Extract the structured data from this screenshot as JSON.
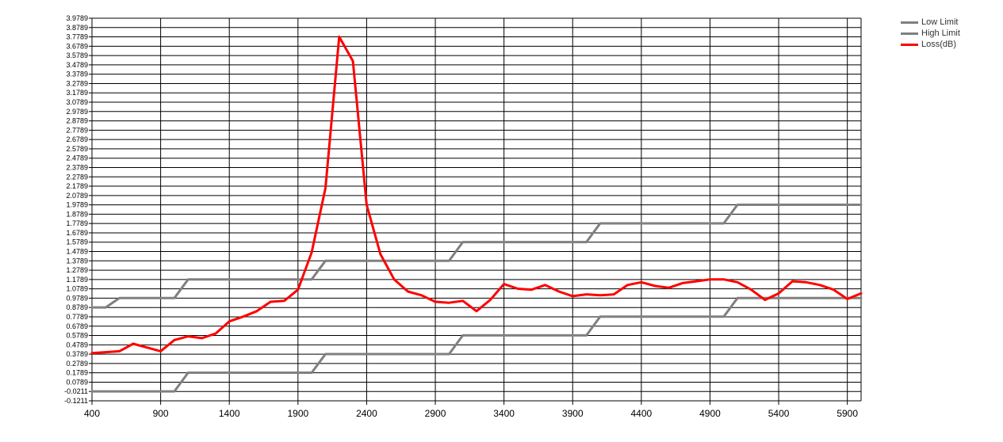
{
  "chart_data": {
    "type": "line",
    "title": "",
    "xlabel": "",
    "ylabel": "",
    "xlim": [
      400,
      6000
    ],
    "ylim": [
      -0.1211,
      3.9789
    ],
    "grid": true,
    "legend_position": "top-right",
    "x_ticks": [
      "400",
      "900",
      "1400",
      "1900",
      "2400",
      "2900",
      "3400",
      "3900",
      "4400",
      "4900",
      "5400",
      "5900"
    ],
    "y_ticks": [
      "3.9789",
      "3.8789",
      "3.7789",
      "3.6789",
      "3.5789",
      "3.4789",
      "3.3789",
      "3.2789",
      "3.1789",
      "3.0789",
      "2.9789",
      "2.8789",
      "2.7789",
      "2.6789",
      "2.5789",
      "2.4789",
      "2.3789",
      "2.2789",
      "2.1789",
      "2.0789",
      "1.9789",
      "1.8789",
      "1.7789",
      "1.6789",
      "1.5789",
      "1.4789",
      "1.3789",
      "1.2789",
      "1.1789",
      "1.0789",
      "0.9789",
      "0.8789",
      "0.7789",
      "0.6789",
      "0.5789",
      "0.4789",
      "0.3789",
      "0.2789",
      "0.1789",
      "0.0789",
      "-0.0211",
      "-0.1211"
    ],
    "series": [
      {
        "name": "Low Limit",
        "color": "#808080",
        "x": [
          400,
          500,
          1000,
          1100,
          2000,
          2100,
          3000,
          3100,
          4000,
          4100,
          5000,
          5100,
          6000
        ],
        "y": [
          -0.02,
          -0.02,
          -0.02,
          0.18,
          0.18,
          0.38,
          0.38,
          0.58,
          0.58,
          0.78,
          0.78,
          0.98,
          0.98
        ]
      },
      {
        "name": "High Limit",
        "color": "#808080",
        "x": [
          400,
          500,
          600,
          1000,
          1100,
          1900,
          2000,
          2100,
          3000,
          3100,
          4000,
          4100,
          5000,
          5100,
          6000
        ],
        "y": [
          0.88,
          0.88,
          0.98,
          0.98,
          1.18,
          1.18,
          1.18,
          1.38,
          1.38,
          1.58,
          1.58,
          1.78,
          1.78,
          1.98,
          1.98
        ]
      },
      {
        "name": "Loss(dB)",
        "color": "#ff0000",
        "x": [
          400,
          500,
          600,
          700,
          800,
          900,
          1000,
          1100,
          1200,
          1300,
          1400,
          1500,
          1600,
          1700,
          1800,
          1900,
          2000,
          2100,
          2200,
          2300,
          2400,
          2500,
          2600,
          2700,
          2800,
          2900,
          3000,
          3100,
          3200,
          3300,
          3400,
          3500,
          3600,
          3700,
          3800,
          3900,
          4000,
          4100,
          4200,
          4300,
          4400,
          4500,
          4600,
          4700,
          4800,
          4900,
          5000,
          5100,
          5200,
          5300,
          5400,
          5500,
          5600,
          5700,
          5800,
          5900,
          6000
        ],
        "y": [
          0.39,
          0.4,
          0.41,
          0.49,
          0.45,
          0.41,
          0.53,
          0.57,
          0.55,
          0.6,
          0.73,
          0.78,
          0.84,
          0.94,
          0.95,
          1.07,
          1.47,
          2.16,
          3.78,
          3.52,
          1.98,
          1.45,
          1.18,
          1.05,
          1.01,
          0.94,
          0.93,
          0.95,
          0.84,
          0.96,
          1.13,
          1.08,
          1.07,
          1.12,
          1.05,
          1.0,
          1.02,
          1.01,
          1.02,
          1.12,
          1.15,
          1.11,
          1.09,
          1.14,
          1.16,
          1.18,
          1.18,
          1.15,
          1.07,
          0.96,
          1.03,
          1.16,
          1.15,
          1.12,
          1.07,
          0.97,
          1.03
        ]
      }
    ]
  }
}
